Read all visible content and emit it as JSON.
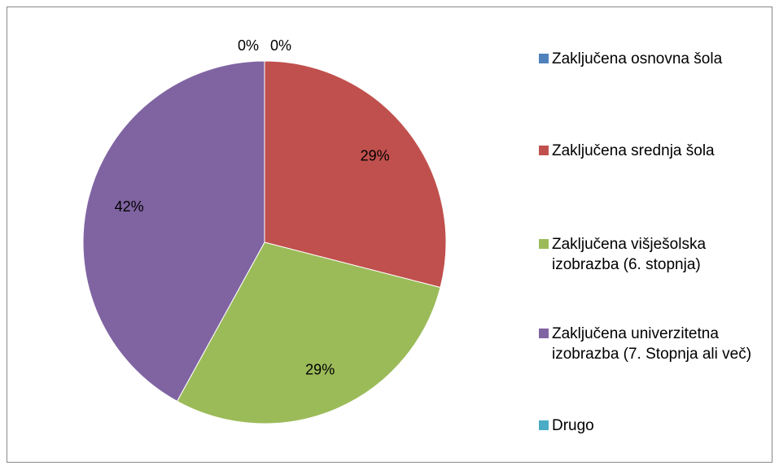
{
  "chart_data": {
    "type": "pie",
    "categories": [
      "Zaključena osnovna šola",
      "Zaključena srednja šola",
      "Zaključena višješolska izobrazba (6. stopnja)",
      "Zaključena univerzitetna izobrazba (7. Stopnja ali več)",
      "Drugo"
    ],
    "values": [
      0,
      29,
      29,
      42,
      0
    ],
    "value_labels": [
      "0%",
      "29%",
      "29%",
      "42%",
      "0%"
    ],
    "colors": [
      "#4f81bd",
      "#c0504d",
      "#9bbb59",
      "#8064a2",
      "#4bacc6"
    ],
    "legend": "right"
  }
}
